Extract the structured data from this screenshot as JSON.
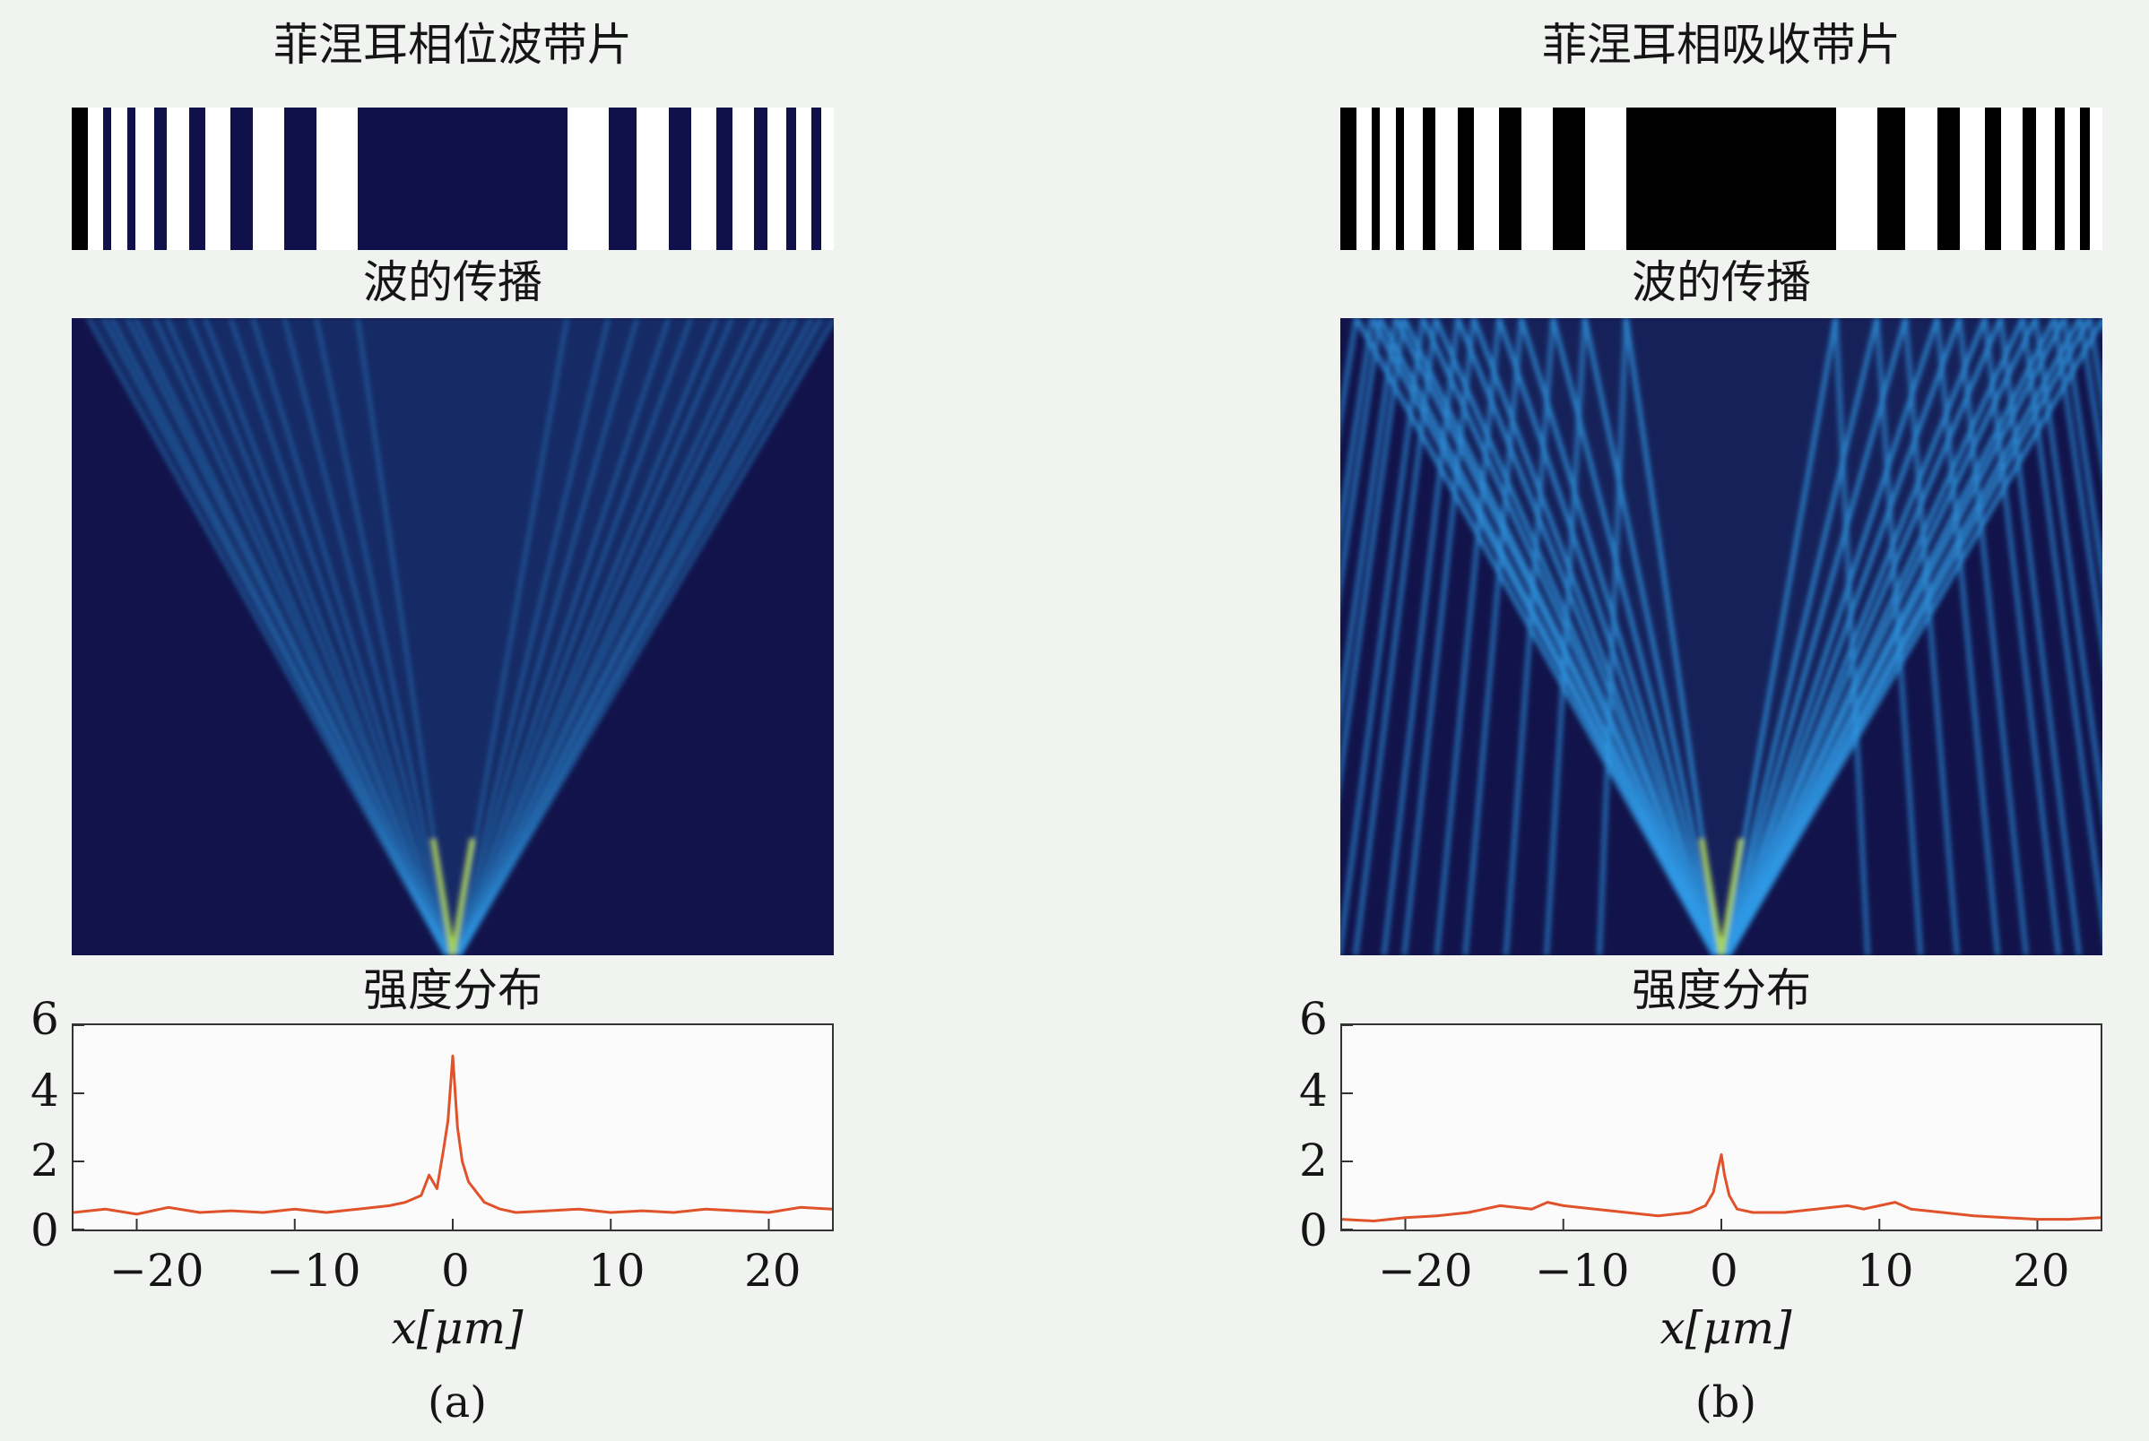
{
  "colors": {
    "background": "#f1f3f1",
    "zone_white": "#ffffff",
    "zone_black": "#000000",
    "phase_gap": "#10104a",
    "field_bg": "#12134a",
    "beam": "#2f9ae6",
    "focus": "#b7e24a",
    "trace": "#e0522a"
  },
  "panels": [
    {
      "id": "a",
      "caption": "(a)",
      "zone_title": "菲涅耳相位波带片",
      "propagation_title": "波的传播",
      "intensity_title": "强度分布",
      "zone_type": "phase",
      "zones": [
        [
          -23,
          -22
        ],
        [
          -21.5,
          -20.5
        ],
        [
          -20,
          -18.8
        ],
        [
          -18,
          -16.6
        ],
        [
          -15.6,
          -14
        ],
        [
          -12.6,
          -10.6
        ],
        [
          -8.6,
          -6
        ],
        [
          7.2,
          9.8
        ],
        [
          11.6,
          13.6
        ],
        [
          15,
          16.6
        ],
        [
          17.6,
          19
        ],
        [
          19.8,
          21
        ],
        [
          21.6,
          22.6
        ],
        [
          23.2,
          24.1
        ]
      ]
    },
    {
      "id": "b",
      "caption": "(b)",
      "zone_title": "菲涅耳相吸收带片",
      "propagation_title": "波的传播",
      "intensity_title": "强度分布",
      "zone_type": "absorption",
      "zones": [
        [
          -23,
          -22
        ],
        [
          -21.5,
          -20.5
        ],
        [
          -20,
          -18.8
        ],
        [
          -18,
          -16.6
        ],
        [
          -15.6,
          -14
        ],
        [
          -12.6,
          -10.6
        ],
        [
          -8.6,
          -6
        ],
        [
          7.2,
          9.8
        ],
        [
          11.6,
          13.6
        ],
        [
          15,
          16.6
        ],
        [
          17.6,
          19
        ],
        [
          19.8,
          21
        ],
        [
          21.6,
          22.6
        ],
        [
          23.2,
          24.1
        ]
      ]
    }
  ],
  "chart_data": [
    {
      "type": "line",
      "panel": "a",
      "title": "强度分布",
      "xlabel": "x[μm]",
      "ylabel": "",
      "xlim": [
        -24,
        24
      ],
      "ylim": [
        0,
        6
      ],
      "xticks": [
        "−20",
        "−10",
        "0",
        "10",
        "20"
      ],
      "xtick_values": [
        -20,
        -10,
        0,
        10,
        20
      ],
      "yticks": [
        "0",
        "2",
        "4",
        "6"
      ],
      "ytick_values": [
        0,
        2,
        4,
        6
      ],
      "x": [
        -24,
        -22,
        -20,
        -18,
        -16,
        -14,
        -12,
        -10,
        -8,
        -6,
        -4,
        -3,
        -2,
        -1.5,
        -1,
        -0.6,
        -0.3,
        0,
        0.3,
        0.6,
        1,
        1.5,
        2,
        3,
        4,
        6,
        8,
        10,
        12,
        14,
        16,
        18,
        20,
        22,
        24
      ],
      "y": [
        0.5,
        0.6,
        0.45,
        0.65,
        0.5,
        0.55,
        0.5,
        0.6,
        0.5,
        0.6,
        0.7,
        0.8,
        1.0,
        1.6,
        1.2,
        2.3,
        3.2,
        5.1,
        3.0,
        2.0,
        1.4,
        1.1,
        0.8,
        0.6,
        0.5,
        0.55,
        0.6,
        0.5,
        0.55,
        0.5,
        0.6,
        0.55,
        0.5,
        0.65,
        0.6
      ]
    },
    {
      "type": "line",
      "panel": "b",
      "title": "强度分布",
      "xlabel": "x[μm]",
      "ylabel": "",
      "xlim": [
        -24,
        24
      ],
      "ylim": [
        0,
        6
      ],
      "xticks": [
        "−20",
        "−10",
        "0",
        "10",
        "20"
      ],
      "xtick_values": [
        -20,
        -10,
        0,
        10,
        20
      ],
      "yticks": [
        "0",
        "2",
        "4",
        "6"
      ],
      "ytick_values": [
        0,
        2,
        4,
        6
      ],
      "x": [
        -24,
        -22,
        -20,
        -18,
        -16,
        -14,
        -12,
        -11,
        -10,
        -8,
        -6,
        -4,
        -2,
        -1,
        -0.5,
        -0.2,
        0,
        0.2,
        0.5,
        1,
        2,
        4,
        6,
        8,
        9,
        10,
        11,
        12,
        14,
        16,
        18,
        20,
        22,
        24
      ],
      "y": [
        0.3,
        0.25,
        0.35,
        0.4,
        0.5,
        0.7,
        0.6,
        0.8,
        0.7,
        0.6,
        0.5,
        0.4,
        0.5,
        0.7,
        1.1,
        1.8,
        2.2,
        1.6,
        1.0,
        0.6,
        0.5,
        0.5,
        0.6,
        0.7,
        0.6,
        0.7,
        0.8,
        0.6,
        0.5,
        0.4,
        0.35,
        0.3,
        0.3,
        0.35
      ]
    }
  ]
}
